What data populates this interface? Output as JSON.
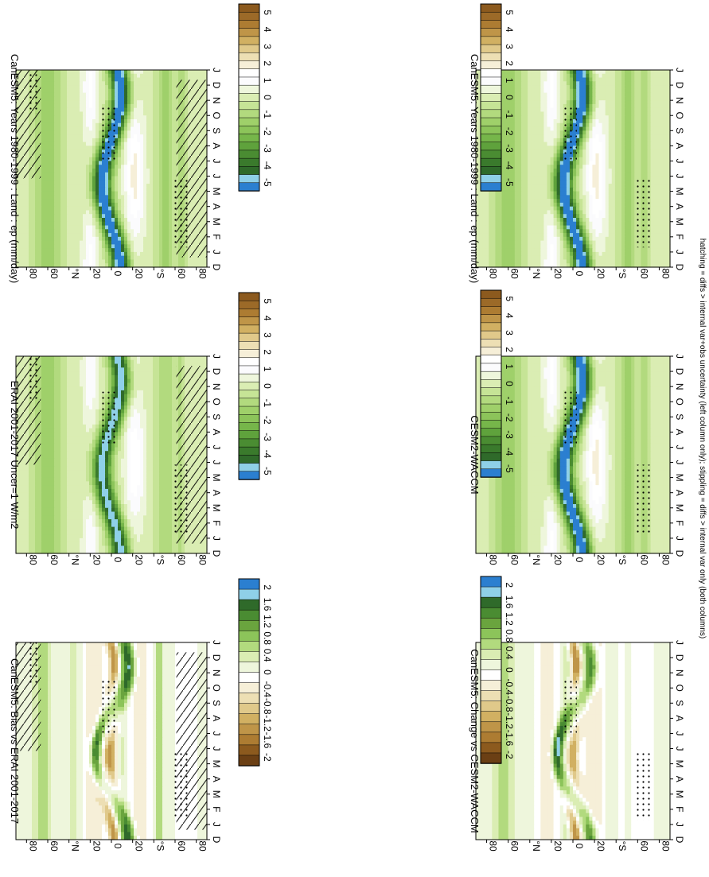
{
  "figure": {
    "footnote": "hatching = diffs > internal var+obs uncertainty (left column only); stippling = diffs > internal var only (both columns)"
  },
  "colors": {
    "precip_scale": [
      "#8c5a1e",
      "#9c6a28",
      "#ad7c32",
      "#bf9548",
      "#d1b062",
      "#e0c98a",
      "#eddfb4",
      "#f6efd8",
      "#ffffff",
      "#fbfbfd",
      "#eef6dc",
      "#daedb3",
      "#c6e496",
      "#b2da7e",
      "#9fd06a",
      "#8cc45a",
      "#76b64a",
      "#5fa23c",
      "#4a8c32",
      "#3a7a2c",
      "#2f6a2a",
      "#8fd0e8",
      "#2b7fd0"
    ],
    "diff_scale": [
      "#2b7fd0",
      "#8fd0e8",
      "#2f6a2a",
      "#4a8c32",
      "#6aa43e",
      "#8cc45a",
      "#b2da7e",
      "#daedb3",
      "#eef6dc",
      "#ffffff",
      "#f6efd8",
      "#eddfb4",
      "#e0c98a",
      "#d1b062",
      "#bf9548",
      "#ad7c32",
      "#8c5a1e",
      "#6b3f14"
    ]
  },
  "chart_data": [
    {
      "type": "heatmap",
      "panel": "top-left",
      "title": "CanESM5: Years 1980-1999 : Land : ep (mm/day)",
      "x": [
        "D",
        "J",
        "F",
        "M",
        "A",
        "M",
        "J",
        "J",
        "A",
        "S",
        "O",
        "N",
        "D",
        "J"
      ],
      "y": [
        "80",
        "60",
        "°N",
        "20",
        "0",
        "20",
        "°S",
        "60",
        "80"
      ],
      "ylim": [
        -90,
        90
      ],
      "units": "mm/day",
      "overlays": [
        "hatching",
        "stippling"
      ],
      "colorbar": {
        "orientation": "vertical",
        "ticks": [
          "5",
          "4",
          "3",
          "2",
          "1",
          "0",
          "-1",
          "-2",
          "-3",
          "-4",
          "-5"
        ],
        "levels": [
          5,
          4,
          3,
          2,
          1,
          0,
          -1,
          -2,
          -3,
          -4,
          -5
        ]
      }
    },
    {
      "type": "heatmap",
      "panel": "top-right",
      "title": "CanESM5: Years 1980-1999 : Land : ep (mm/day)",
      "x": [
        "D",
        "J",
        "F",
        "M",
        "A",
        "M",
        "J",
        "J",
        "A",
        "S",
        "O",
        "N",
        "D",
        "J"
      ],
      "y": [
        "80",
        "60",
        "°N",
        "20",
        "0",
        "20",
        "°S",
        "60",
        "80"
      ],
      "ylim": [
        -90,
        90
      ],
      "units": "mm/day",
      "overlays": [
        "stippling"
      ],
      "colorbar": {
        "orientation": "vertical",
        "ticks": [
          "5",
          "4",
          "3",
          "2",
          "1",
          "0",
          "-1",
          "-2",
          "-3",
          "-4",
          "-5"
        ],
        "levels": [
          5,
          4,
          3,
          2,
          1,
          0,
          -1,
          -2,
          -3,
          -4,
          -5
        ]
      }
    },
    {
      "type": "heatmap",
      "panel": "middle-left",
      "title": "ERAI 2001-2017 Uncer=1 W/m2",
      "x": [
        "D",
        "J",
        "F",
        "M",
        "A",
        "M",
        "J",
        "J",
        "A",
        "S",
        "O",
        "N",
        "D",
        "J"
      ],
      "y": [
        "80",
        "60",
        "°N",
        "20",
        "0",
        "20",
        "°S",
        "60",
        "80"
      ],
      "ylim": [
        -90,
        90
      ],
      "units": "mm/day",
      "overlays": [
        "hatching",
        "stippling"
      ],
      "colorbar": {
        "orientation": "vertical",
        "ticks": [
          "5",
          "4",
          "3",
          "2",
          "1",
          "0",
          "-1",
          "-2",
          "-3",
          "-4",
          "-5"
        ],
        "levels": [
          5,
          4,
          3,
          2,
          1,
          0,
          -1,
          -2,
          -3,
          -4,
          -5
        ]
      }
    },
    {
      "type": "heatmap",
      "panel": "middle-right",
      "title": "CESM2-WACCM",
      "x": [
        "D",
        "J",
        "F",
        "M",
        "A",
        "M",
        "J",
        "J",
        "A",
        "S",
        "O",
        "N",
        "D",
        "J"
      ],
      "y": [
        "80",
        "60",
        "°N",
        "20",
        "0",
        "20",
        "°S",
        "60",
        "80"
      ],
      "ylim": [
        -90,
        90
      ],
      "units": "mm/day",
      "overlays": [
        "stippling"
      ],
      "colorbar": {
        "orientation": "vertical",
        "ticks": [
          "5",
          "4",
          "3",
          "2",
          "1",
          "0",
          "-1",
          "-2",
          "-3",
          "-4",
          "-5"
        ],
        "levels": [
          5,
          4,
          3,
          2,
          1,
          0,
          -1,
          -2,
          -3,
          -4,
          -5
        ]
      }
    },
    {
      "type": "heatmap",
      "panel": "bottom-left",
      "title": "CanESM5: Bias vs ERAI 2001-2017",
      "x": [
        "D",
        "J",
        "F",
        "M",
        "A",
        "M",
        "J",
        "J",
        "A",
        "S",
        "O",
        "N",
        "D",
        "J"
      ],
      "y": [
        "80",
        "60",
        "°N",
        "20",
        "0",
        "20",
        "°S",
        "60",
        "80"
      ],
      "ylim": [
        -90,
        90
      ],
      "units": "mm/day",
      "overlays": [
        "hatching",
        "stippling"
      ],
      "colorbar": {
        "orientation": "vertical",
        "ticks": [
          "2",
          "1.6",
          "1.2",
          "0.8",
          "0.4",
          "0",
          "-0.4",
          "-0.8",
          "-1.2",
          "-1.6",
          "-2"
        ],
        "levels": [
          2,
          1.6,
          1.2,
          0.8,
          0.4,
          0,
          -0.4,
          -0.8,
          -1.2,
          -1.6,
          -2
        ]
      }
    },
    {
      "type": "heatmap",
      "panel": "bottom-right",
      "title": "CanESM5: Change vs CESM2-WACCM",
      "x": [
        "D",
        "J",
        "F",
        "M",
        "A",
        "M",
        "J",
        "J",
        "A",
        "S",
        "O",
        "N",
        "D",
        "J"
      ],
      "y": [
        "80",
        "60",
        "°N",
        "20",
        "0",
        "20",
        "°S",
        "60",
        "80"
      ],
      "ylim": [
        -90,
        90
      ],
      "units": "mm/day",
      "overlays": [
        "stippling"
      ],
      "colorbar": {
        "orientation": "vertical",
        "ticks": [
          "2",
          "1.6",
          "1.2",
          "0.8",
          "0.4",
          "0",
          "-0.4",
          "-0.8",
          "-1.2",
          "-1.6",
          "-2"
        ],
        "levels": [
          2,
          1.6,
          1.2,
          0.8,
          0.4,
          0,
          -0.4,
          -0.8,
          -1.2,
          -1.6,
          -2
        ]
      }
    }
  ]
}
